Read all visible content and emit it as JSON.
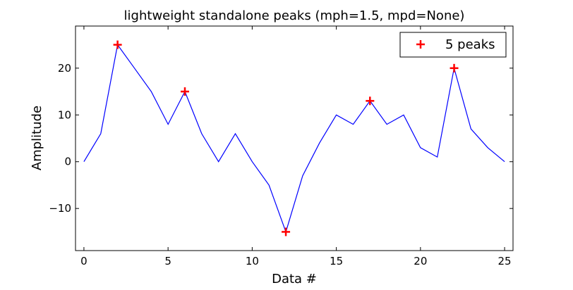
{
  "chart_data": {
    "type": "line",
    "title": "lightweight standalone peaks (mph=1.5, mpd=None)",
    "xlabel": "Data #",
    "ylabel": "Amplitude",
    "xlim": [
      -0.5,
      25.5
    ],
    "ylim": [
      -19,
      29
    ],
    "xticks": [
      0,
      5,
      10,
      15,
      20,
      25
    ],
    "yticks": [
      -10,
      0,
      10,
      20
    ],
    "grid": false,
    "legend_position": "top-right",
    "series": [
      {
        "values": [
          0,
          6,
          25,
          20,
          15,
          8,
          15,
          6,
          0,
          6,
          0,
          -5,
          -15,
          -3,
          4,
          10,
          8,
          13,
          8,
          10,
          3,
          1,
          20,
          7,
          3,
          0
        ],
        "color": "#0000ff"
      }
    ],
    "peaks": {
      "name": "5 peaks",
      "color": "#ff0000",
      "x": [
        2,
        6,
        12,
        17,
        22
      ],
      "y": [
        25,
        15,
        -15,
        13,
        20
      ]
    }
  }
}
